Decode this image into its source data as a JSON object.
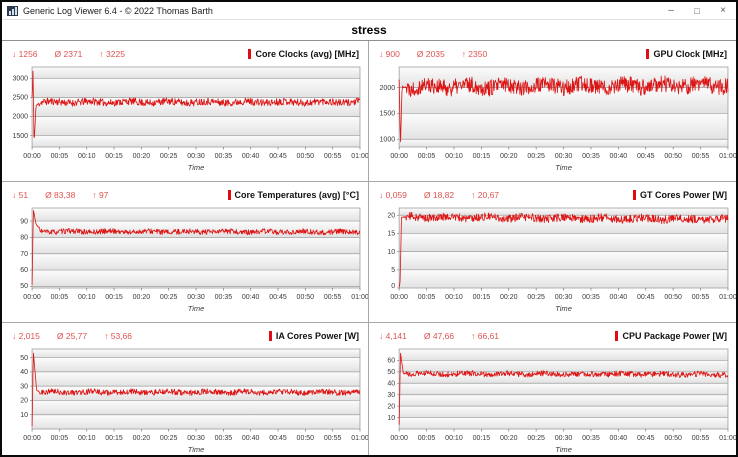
{
  "window": {
    "title": "Generic Log Viewer 6.4 - © 2022 Thomas Barth",
    "controls": {
      "minimize": "–",
      "maximize": "□",
      "close": "×"
    }
  },
  "header": {
    "title": "stress"
  },
  "time_axis": {
    "label": "Time",
    "ticks": [
      "00:00",
      "00:05",
      "00:10",
      "00:15",
      "00:20",
      "00:25",
      "00:30",
      "00:35",
      "00:40",
      "00:45",
      "00:50",
      "00:55",
      "01:00"
    ]
  },
  "colors": {
    "line": "#dc1414",
    "legend_bar": "#e30b13",
    "stats_text": "#dd5450",
    "gridline": "#9c9c9c",
    "plot_border": "#a8a8a8",
    "band_top": "#fcfcfc",
    "band_bottom": "#e2e2e2"
  },
  "chart_data": [
    {
      "id": "core-clocks",
      "type": "line",
      "title": "Core Clocks (avg) [MHz]",
      "stats": {
        "min": "↓ 1256",
        "avg": "Ø 2371",
        "max": "↑ 3225"
      },
      "y_ticks": [
        1500,
        2000,
        2500,
        3000
      ],
      "ylim": [
        1200,
        3300
      ],
      "xlabel": "Time",
      "series_profile": [
        [
          0,
          2500
        ],
        [
          0.003,
          3225
        ],
        [
          0.006,
          1256
        ],
        [
          0.012,
          2280
        ],
        [
          0.025,
          2380
        ],
        [
          1,
          2380
        ]
      ],
      "noise": 95,
      "seed": 11
    },
    {
      "id": "gpu-clock",
      "type": "line",
      "title": "GPU Clock [MHz]",
      "stats": {
        "min": "↓ 900",
        "avg": "Ø 2035",
        "max": "↑ 2350"
      },
      "y_ticks": [
        1000,
        1500,
        2000
      ],
      "ylim": [
        850,
        2400
      ],
      "xlabel": "Time",
      "series_profile": [
        [
          0,
          2150
        ],
        [
          0.004,
          900
        ],
        [
          0.009,
          2020
        ],
        [
          1,
          2045
        ]
      ],
      "noise": 160,
      "seed": 22
    },
    {
      "id": "core-temperatures",
      "type": "line",
      "title": "Core Temperatures (avg) [°C]",
      "stats": {
        "min": "↓ 51",
        "avg": "Ø 83,38",
        "max": "↑ 97"
      },
      "y_ticks": [
        50,
        60,
        70,
        80,
        90
      ],
      "ylim": [
        49,
        98
      ],
      "xlabel": "Time",
      "series_profile": [
        [
          0,
          51
        ],
        [
          0.004,
          97
        ],
        [
          0.012,
          88
        ],
        [
          0.03,
          83.6
        ],
        [
          1,
          83.3
        ]
      ],
      "noise": 1.6,
      "seed": 33
    },
    {
      "id": "gt-cores-power",
      "type": "line",
      "title": "GT Cores Power [W]",
      "stats": {
        "min": "↓ 0,059",
        "avg": "Ø 18,82",
        "max": "↑ 20,67"
      },
      "y_ticks": [
        0,
        5,
        10,
        15,
        20
      ],
      "ylim": [
        0,
        22
      ],
      "xlabel": "Time",
      "series_profile": [
        [
          0,
          0.059
        ],
        [
          0.003,
          2
        ],
        [
          0.007,
          19.5
        ],
        [
          1,
          18.9
        ]
      ],
      "noise": 1.1,
      "seed": 44
    },
    {
      "id": "ia-cores-power",
      "type": "line",
      "title": "IA Cores Power [W]",
      "stats": {
        "min": "↓ 2,015",
        "avg": "Ø 25,77",
        "max": "↑ 53,66"
      },
      "y_ticks": [
        10,
        20,
        30,
        40,
        50
      ],
      "ylim": [
        0,
        56
      ],
      "xlabel": "Time",
      "series_profile": [
        [
          0,
          2.015
        ],
        [
          0.004,
          53.66
        ],
        [
          0.014,
          27
        ],
        [
          0.03,
          25.8
        ],
        [
          1,
          25.8
        ]
      ],
      "noise": 2.0,
      "seed": 55
    },
    {
      "id": "cpu-package-power",
      "type": "line",
      "title": "CPU Package Power [W]",
      "stats": {
        "min": "↓ 4,141",
        "avg": "Ø 47,66",
        "max": "↑ 66,61"
      },
      "y_ticks": [
        10,
        20,
        30,
        40,
        50,
        60
      ],
      "ylim": [
        0,
        70
      ],
      "xlabel": "Time",
      "series_profile": [
        [
          0,
          4.141
        ],
        [
          0.004,
          66.61
        ],
        [
          0.013,
          48.5
        ],
        [
          1,
          47.8
        ]
      ],
      "noise": 2.4,
      "seed": 66
    }
  ]
}
